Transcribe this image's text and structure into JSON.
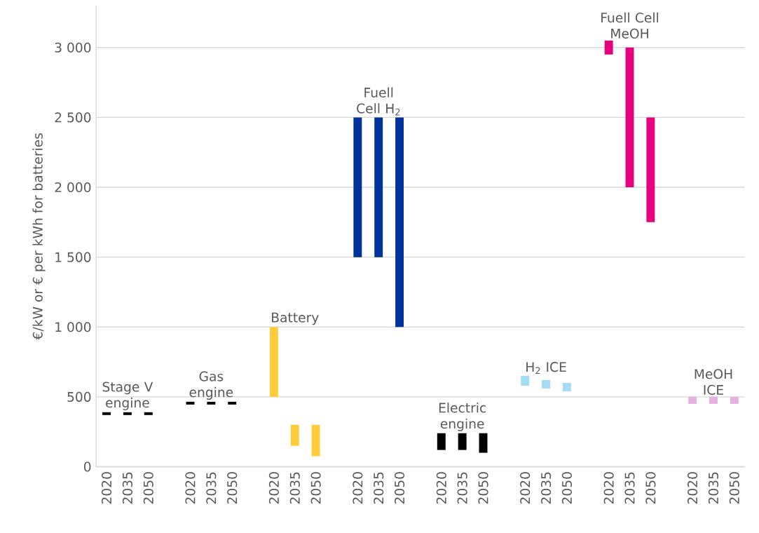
{
  "chart_data": {
    "type": "bar",
    "ylabel": "€/kW or € per kWh for batteries",
    "categories": [
      "2020",
      "2035",
      "2050",
      null,
      "2020",
      "2035",
      "2050",
      null,
      "2020",
      "2035",
      "2050",
      null,
      "2020",
      "2035",
      "2050",
      null,
      "2020",
      "2035",
      "2050",
      null,
      "2020",
      "2035",
      "2050",
      null,
      "2020",
      "2035",
      "2050",
      null,
      "2020",
      "2035",
      "2050"
    ],
    "base": [
      370,
      370,
      370,
      null,
      445,
      445,
      445,
      null,
      500,
      150,
      75,
      null,
      1500,
      1500,
      1000,
      null,
      120,
      120,
      100,
      null,
      580,
      560,
      540,
      null,
      2950,
      2000,
      1750,
      null,
      450,
      450,
      450
    ],
    "values": [
      20,
      20,
      20,
      null,
      20,
      20,
      20,
      null,
      500,
      150,
      225,
      null,
      1000,
      1000,
      1500,
      null,
      120,
      120,
      140,
      null,
      70,
      60,
      60,
      null,
      100,
      1000,
      750,
      null,
      50,
      50,
      50
    ],
    "colors": [
      "#000000",
      "#000000",
      "#000000",
      null,
      "#000000",
      "#000000",
      "#000000",
      null,
      "#ffcd3c",
      "#ffcd3c",
      "#ffcd3c",
      null,
      "#003399",
      "#003399",
      "#003399",
      null,
      "#000000",
      "#000000",
      "#000000",
      null,
      "#a3dcf5",
      "#a3dcf5",
      "#a3dcf5",
      null,
      "#e6007e",
      "#e6007e",
      "#e6007e",
      null,
      "#e6b0e0",
      "#e6b0e0",
      "#e6b0e0"
    ],
    "ylim": [
      0,
      3300
    ],
    "yticks": [
      0,
      500,
      {
        "value": 1000,
        "label": "1 000"
      },
      {
        "value": 1500,
        "label": "1 500"
      },
      {
        "value": 2000,
        "label": "2 000"
      },
      {
        "value": 2500,
        "label": "2 500"
      },
      {
        "value": 3000,
        "label": "3 000"
      }
    ],
    "grid": "y",
    "annotations": [
      "Stage V engine",
      "Gas engine",
      "Battery",
      "Fuell Cell H$_{2}$",
      "Electric engine",
      "H$_{2}$ ICE",
      "Fuell Cell MeOH",
      "MeOH ICE"
    ]
  }
}
